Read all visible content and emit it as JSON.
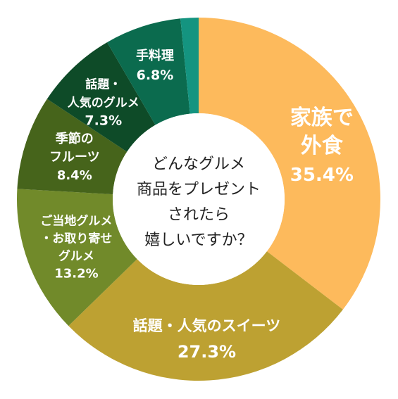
{
  "chart_data": {
    "type": "pie",
    "variant": "donut",
    "center_text": [
      "どんなグルメ",
      "商品をプレゼント",
      "されたら",
      "嬉しいですか？"
    ],
    "slices": [
      {
        "key": "family",
        "label_lines": [
          "家族で",
          "外食"
        ],
        "value_text": "35.4%",
        "value": 35.4,
        "color": "#FDBA5C",
        "text_color": "#FFFFFF"
      },
      {
        "key": "sweets",
        "label_lines": [
          "話題・人気のスイーツ"
        ],
        "value_text": "27.3%",
        "value": 27.3,
        "color": "#BDA132",
        "text_color": "#FFFFFF"
      },
      {
        "key": "local",
        "label_lines": [
          "ご当地グルメ",
          "・お取り寄せ",
          "グルメ"
        ],
        "value_text": "13.2%",
        "value": 13.2,
        "color": "#718A2A",
        "text_color": "#FFFFFF"
      },
      {
        "key": "fruits",
        "label_lines": [
          "季節の",
          "フルーツ"
        ],
        "value_text": "8.4%",
        "value": 8.4,
        "color": "#46641B",
        "text_color": "#FFFFFF"
      },
      {
        "key": "gourmet",
        "label_lines": [
          "話題・",
          "人気のグルメ"
        ],
        "value_text": "7.3%",
        "value": 7.3,
        "color": "#0E4B28",
        "text_color": "#FFFFFF"
      },
      {
        "key": "handmade",
        "label_lines": [
          "手料理"
        ],
        "value_text": "6.8%",
        "value": 6.8,
        "color": "#0B6B4E",
        "text_color": "#FFFFFF"
      },
      {
        "key": "other",
        "label_lines": [],
        "value_text": "",
        "value": 1.6,
        "color": "#149480",
        "text_color": "#FFFFFF"
      }
    ]
  }
}
